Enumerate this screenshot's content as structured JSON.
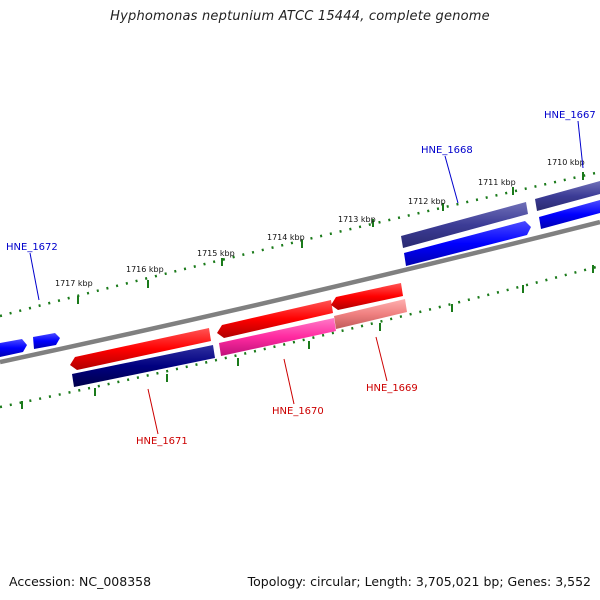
{
  "header": {
    "title": "Hyphomonas neptunium ATCC 15444, complete genome"
  },
  "footer": {
    "accession": "Accession: NC_008358",
    "summary": "Topology: circular; Length: 3,705,021 bp; Genes: 3,552"
  },
  "ruler": {
    "labels": [
      "1710 kbp",
      "1711 kbp",
      "1712 kbp",
      "1713 kbp",
      "1714 kbp",
      "1715 kbp",
      "1716 kbp",
      "1717 kbp"
    ]
  },
  "genes": [
    {
      "id": "HNE_1667",
      "strand": "forward",
      "color": "#0000cc"
    },
    {
      "id": "HNE_1668",
      "strand": "forward",
      "color": "#0000cc"
    },
    {
      "id": "HNE_1669",
      "strand": "reverse",
      "color": "#cc0000"
    },
    {
      "id": "HNE_1670",
      "strand": "reverse",
      "color": "#cc0000"
    },
    {
      "id": "HNE_1671",
      "strand": "reverse",
      "color": "#cc0000"
    },
    {
      "id": "HNE_1672",
      "strand": "forward",
      "color": "#0000cc"
    }
  ],
  "colors": {
    "backbone": "#808080",
    "ruler_ticks": "#1a7a1a",
    "forward_cds": "#0000ff",
    "forward_gene": "#3c3c96",
    "reverse_cds": "#ff0000",
    "reverse_gene_1669": "#f08080",
    "reverse_gene_1670": "#ff2aa0",
    "reverse_gene_1671": "#000080"
  }
}
